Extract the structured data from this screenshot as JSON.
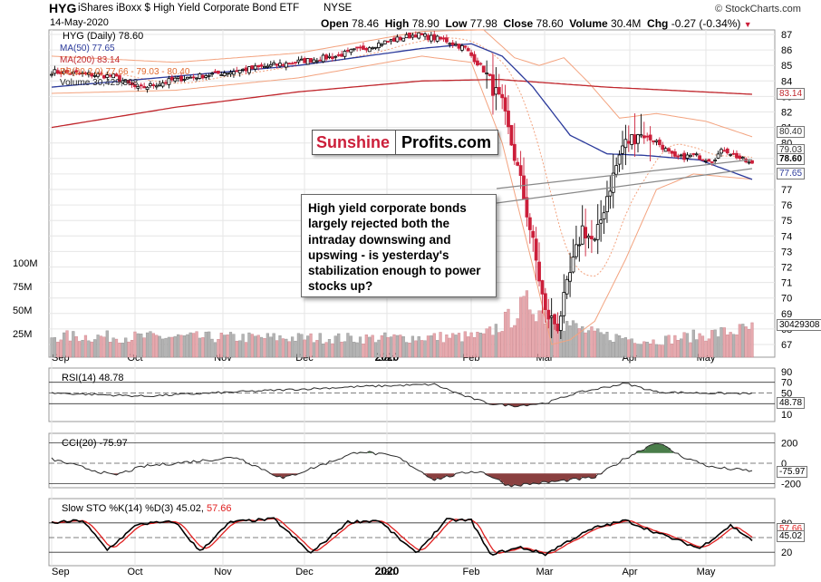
{
  "header": {
    "symbol": "HYG",
    "name": "iShares iBoxx $ High Yield Corporate Bond ETF",
    "exchange": "NYSE",
    "date": "14-May-2020",
    "open_label": "Open",
    "open": "78.46",
    "high_label": "High",
    "high": "78.90",
    "low_label": "Low",
    "low": "77.98",
    "close_label": "Close",
    "close": "78.60",
    "volume_label": "Volume",
    "volume": "30.4M",
    "chg_label": "Chg",
    "chg": "-0.27 (-0.34%)",
    "copyright": "© StockCharts.com"
  },
  "legend": {
    "price": "HYG (Daily) 78.60",
    "ma50": "MA(50) 77.65",
    "ma200": "MA(200) 83.14",
    "bb": "BB(20,2.0) 77.66 - 79.03 - 80.40",
    "volume": "Volume 30,429,308"
  },
  "colors": {
    "up": "#000000",
    "down": "#cc1f3a",
    "ma50": "#2b3a9b",
    "ma200": "#c0272d",
    "bb": "#f3a37f",
    "vol_up": "#b4b4b4",
    "vol_down": "#e7a9ae",
    "rsi": "#2a2a2a",
    "cci": "#2a2a2a",
    "pos_fill": "#4a7d4a",
    "neg_fill": "#8a4040",
    "sto_k": "#000000",
    "sto_d": "#e02020"
  },
  "price_axis": {
    "ticks": [
      "87",
      "86",
      "85",
      "84",
      "83",
      "82",
      "81",
      "80",
      "79",
      "78",
      "77",
      "76",
      "75",
      "74",
      "73",
      "72",
      "71",
      "70",
      "69",
      "68",
      "67"
    ]
  },
  "price_badges": {
    "ma200": "83.14",
    "bb_upper": "80.40",
    "bb_mid": "79.03",
    "close": "78.60",
    "ma50": "77.65"
  },
  "volume_axis": {
    "ticks": [
      "100M",
      "75M",
      "50M",
      "25M"
    ],
    "badge": "30429308"
  },
  "x_axis": [
    "Sep",
    "Oct",
    "Nov",
    "Dec",
    "2020",
    "Jan",
    "Feb",
    "Mar",
    "Apr",
    "May"
  ],
  "watermark": {
    "part1": "Sunshine",
    "part2": "Profits.com"
  },
  "annotation": "High yield corporate bonds largely rejected both the intraday downswing and upswing - is yesterday's stabilization enough to power stocks up?",
  "rsi": {
    "label": "RSI(14) 48.78",
    "ticks": [
      "90",
      "70",
      "50",
      "30",
      "10"
    ],
    "value": "48.78"
  },
  "cci": {
    "label": "CCI(20) -75.97",
    "ticks": [
      "200",
      "0",
      "-200"
    ],
    "value": "-75.97"
  },
  "sto": {
    "label_k": "Slow STO %K(14) %D(3) 45.02,",
    "label_d": "57.66",
    "ticks": [
      "80",
      "50",
      "20"
    ],
    "value_k": "45.02",
    "value_d": "57.66"
  },
  "chart_data": {
    "type": "candlestick",
    "title": "HYG iShares iBoxx $ High Yield Corporate Bond ETF NYSE",
    "x_range": [
      "2019-09",
      "2020-05"
    ],
    "y_range": [
      67,
      87.6
    ],
    "grid": true,
    "price_waypoints": [
      [
        0,
        84.6
      ],
      [
        20,
        84.3
      ],
      [
        28,
        83.5
      ],
      [
        40,
        84.1
      ],
      [
        58,
        84.6
      ],
      [
        75,
        85.1
      ],
      [
        92,
        85.6
      ],
      [
        106,
        86.4
      ],
      [
        118,
        87.0
      ],
      [
        128,
        86.6
      ],
      [
        134,
        86.1
      ],
      [
        140,
        84.7
      ],
      [
        146,
        82.4
      ],
      [
        152,
        77.5
      ],
      [
        156,
        73.5
      ],
      [
        160,
        69.0
      ],
      [
        164,
        68.2
      ],
      [
        168,
        71.5
      ],
      [
        172,
        74.5
      ],
      [
        176,
        73.5
      ],
      [
        180,
        76.6
      ],
      [
        185,
        79.8
      ],
      [
        190,
        80.6
      ],
      [
        196,
        80.1
      ],
      [
        202,
        79.0
      ],
      [
        208,
        79.2
      ],
      [
        214,
        78.9
      ],
      [
        218,
        79.6
      ],
      [
        224,
        78.9
      ],
      [
        227,
        78.6
      ]
    ],
    "ma50_waypoints": [
      [
        0,
        83.6
      ],
      [
        40,
        84.3
      ],
      [
        80,
        85.0
      ],
      [
        120,
        86.1
      ],
      [
        136,
        86.4
      ],
      [
        146,
        85.6
      ],
      [
        156,
        83.6
      ],
      [
        168,
        80.5
      ],
      [
        180,
        79.3
      ],
      [
        192,
        79.2
      ],
      [
        210,
        78.9
      ],
      [
        227,
        77.65
      ]
    ],
    "ma200_waypoints": [
      [
        0,
        81.0
      ],
      [
        40,
        82.3
      ],
      [
        80,
        83.3
      ],
      [
        120,
        84.0
      ],
      [
        145,
        84.1
      ],
      [
        180,
        83.6
      ],
      [
        227,
        83.14
      ]
    ],
    "bb_upper_waypoints": [
      [
        0,
        85.6
      ],
      [
        40,
        85.2
      ],
      [
        80,
        85.8
      ],
      [
        120,
        87.2
      ],
      [
        140,
        87.3
      ],
      [
        150,
        85.5
      ],
      [
        158,
        85.0
      ],
      [
        166,
        85.5
      ],
      [
        174,
        83.9
      ],
      [
        184,
        81.6
      ],
      [
        196,
        81.9
      ],
      [
        212,
        81.4
      ],
      [
        227,
        80.4
      ]
    ],
    "bb_lower_waypoints": [
      [
        0,
        83.2
      ],
      [
        40,
        83.4
      ],
      [
        80,
        84.2
      ],
      [
        120,
        85.6
      ],
      [
        136,
        85.2
      ],
      [
        146,
        80.0
      ],
      [
        156,
        72.0
      ],
      [
        162,
        67.0
      ],
      [
        168,
        67.3
      ],
      [
        176,
        68.5
      ],
      [
        186,
        72.5
      ],
      [
        196,
        77.0
      ],
      [
        208,
        78.0
      ],
      [
        227,
        77.66
      ]
    ],
    "volume_waypoints": [
      [
        0,
        22
      ],
      [
        50,
        21
      ],
      [
        100,
        20
      ],
      [
        140,
        22
      ],
      [
        148,
        40
      ],
      [
        155,
        58
      ],
      [
        160,
        45
      ],
      [
        168,
        34
      ],
      [
        176,
        24
      ],
      [
        195,
        17
      ],
      [
        227,
        30
      ]
    ],
    "rsi_waypoints": [
      [
        0,
        50
      ],
      [
        30,
        44
      ],
      [
        60,
        52
      ],
      [
        100,
        62
      ],
      [
        124,
        66
      ],
      [
        134,
        44
      ],
      [
        142,
        30
      ],
      [
        150,
        26
      ],
      [
        160,
        31
      ],
      [
        170,
        50
      ],
      [
        186,
        68
      ],
      [
        196,
        52
      ],
      [
        210,
        50
      ],
      [
        227,
        48.8
      ]
    ],
    "cci_waypoints": [
      [
        0,
        40
      ],
      [
        20,
        -120
      ],
      [
        30,
        -30
      ],
      [
        60,
        60
      ],
      [
        75,
        -150
      ],
      [
        100,
        120
      ],
      [
        112,
        60
      ],
      [
        124,
        -160
      ],
      [
        136,
        -80
      ],
      [
        140,
        -90
      ],
      [
        148,
        -220
      ],
      [
        160,
        -190
      ],
      [
        176,
        -140
      ],
      [
        186,
        50
      ],
      [
        196,
        210
      ],
      [
        204,
        70
      ],
      [
        214,
        -40
      ],
      [
        227,
        -76
      ]
    ],
    "sto_k_waypoints": [
      [
        0,
        80
      ],
      [
        10,
        85
      ],
      [
        18,
        25
      ],
      [
        28,
        78
      ],
      [
        40,
        82
      ],
      [
        48,
        22
      ],
      [
        58,
        82
      ],
      [
        72,
        88
      ],
      [
        84,
        18
      ],
      [
        96,
        82
      ],
      [
        106,
        85
      ],
      [
        118,
        18
      ],
      [
        128,
        86
      ],
      [
        136,
        85
      ],
      [
        142,
        16
      ],
      [
        152,
        30
      ],
      [
        160,
        16
      ],
      [
        168,
        45
      ],
      [
        176,
        70
      ],
      [
        186,
        85
      ],
      [
        196,
        60
      ],
      [
        210,
        28
      ],
      [
        220,
        75
      ],
      [
        227,
        45
      ]
    ]
  }
}
